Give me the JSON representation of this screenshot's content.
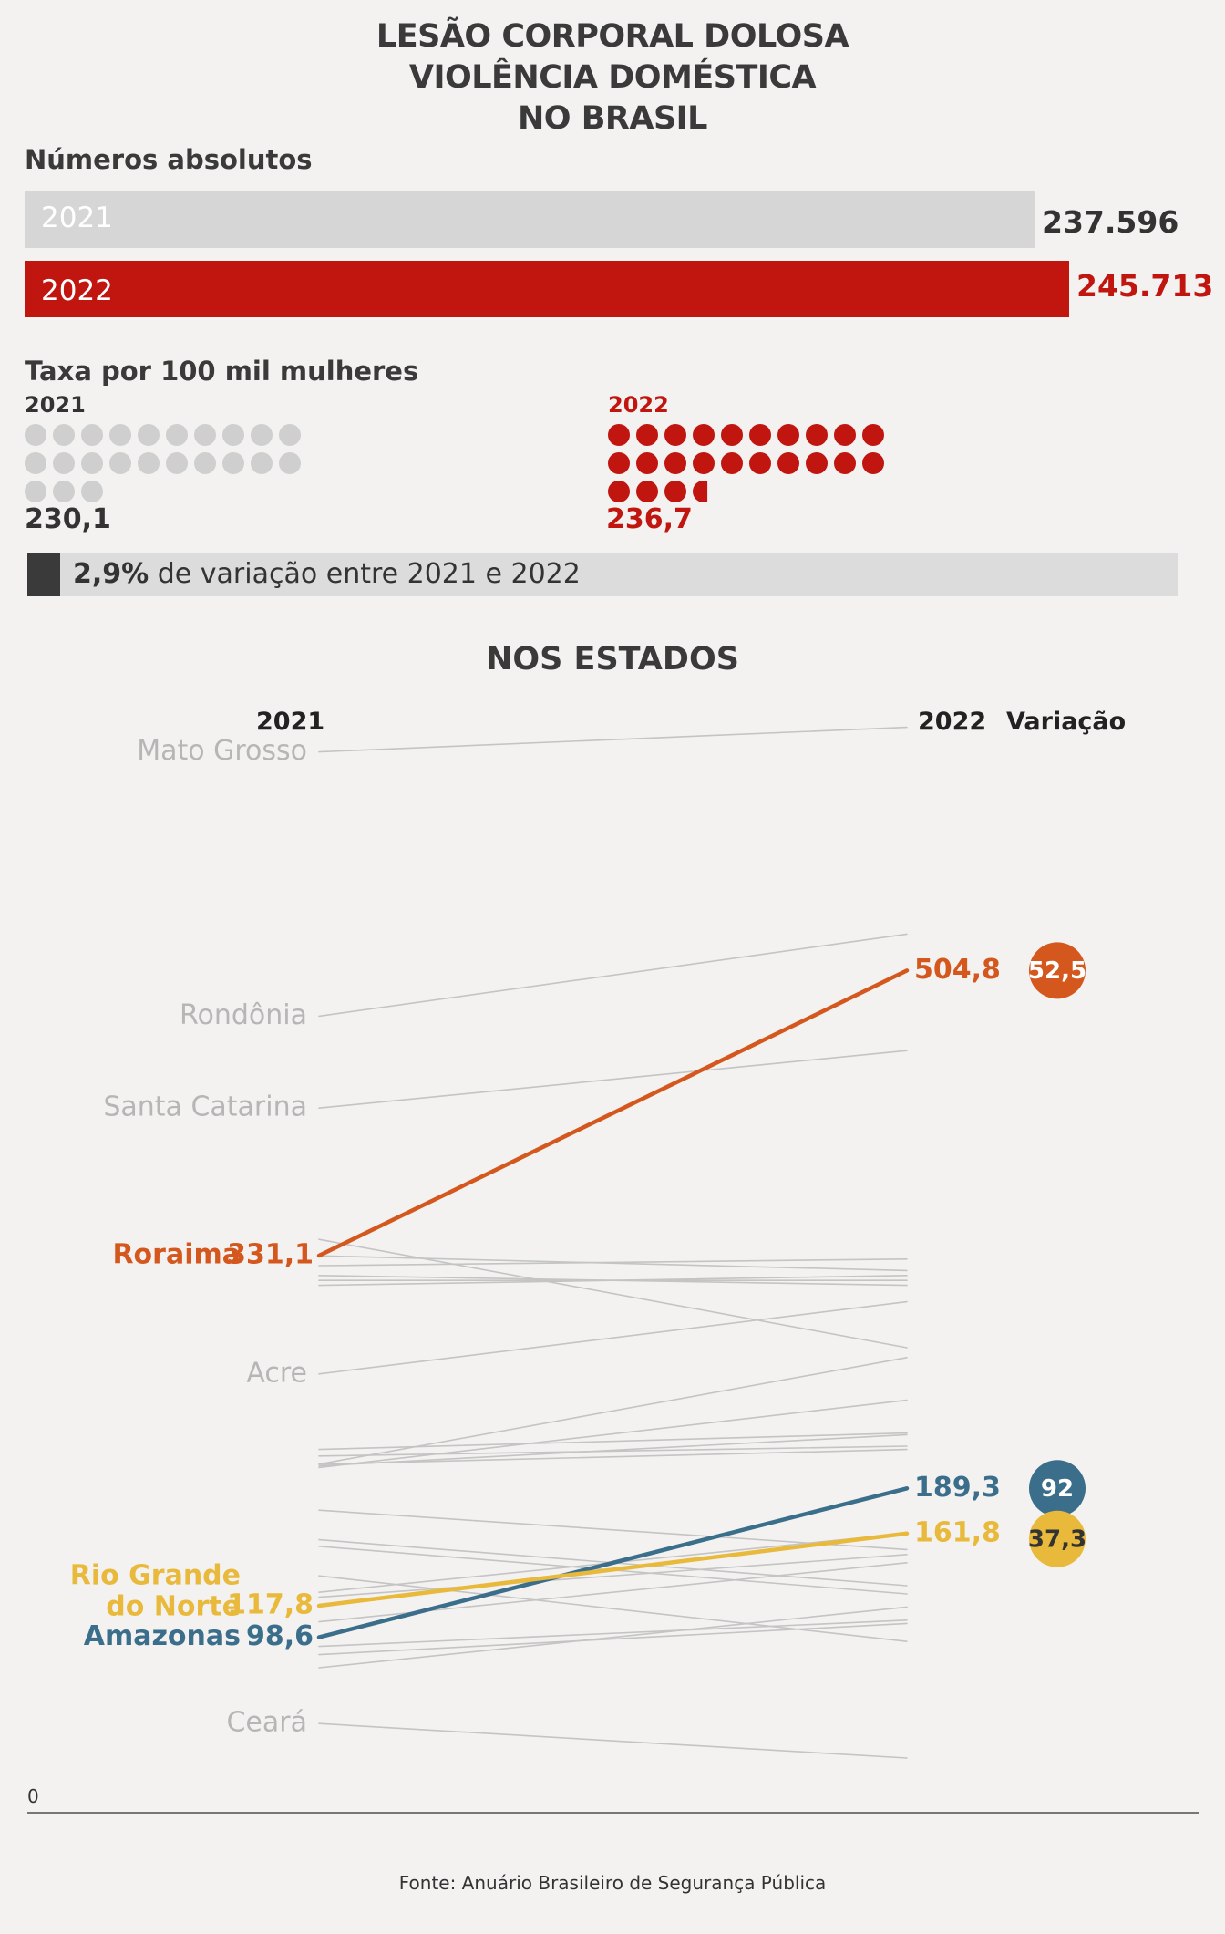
{
  "title": {
    "line1": "LESÃO CORPORAL DOLOSA",
    "line2": "VIOLÊNCIA DOMÉSTICA",
    "line3": "NO BRASIL"
  },
  "absolutes": {
    "heading": "Números absolutos",
    "bars": [
      {
        "year": "2021",
        "value": 237596,
        "label": "237.596",
        "color": "#d6d6d6",
        "text_color": "#ffffff",
        "value_color": "#333333"
      },
      {
        "year": "2022",
        "value": 245713,
        "label": "245.713",
        "color": "#c0160f",
        "text_color": "#ffffff",
        "value_color": "#c0160f"
      }
    ]
  },
  "rate": {
    "heading": "Taxa por 100 mil mulheres",
    "y2021": {
      "year": "2021",
      "value": 230.1,
      "label": "230,1",
      "color": "#cfcfcf",
      "value_color": "#333333",
      "year_color": "#333333"
    },
    "y2022": {
      "year": "2022",
      "value": 236.7,
      "label": "236,7",
      "color": "#c0160f",
      "value_color": "#c0160f",
      "year_color": "#c0160f"
    }
  },
  "variation": {
    "value": "2,9%",
    "text": " de variação entre 2021 e 2022"
  },
  "states": {
    "title": "NOS ESTADOS",
    "head_2021": "2021",
    "head_2022": "2022",
    "head_var": "Variação",
    "zero_label": "0",
    "colors": {
      "orange": "#d4581e",
      "blue": "#3b6e8a",
      "yellow": "#e8b93a",
      "gray": "#c4c4c4"
    }
  },
  "chart_data": {
    "type": "line",
    "title": "NOS ESTADOS",
    "x": [
      "2021",
      "2022"
    ],
    "ylim": [
      0,
      720
    ],
    "highlighted": [
      {
        "name": "Roraima",
        "values": [
          331.1,
          504.8
        ],
        "value_labels": [
          "331,1",
          "504,8"
        ],
        "variation": "52,5",
        "color": "#d4581e"
      },
      {
        "name": "Amazonas",
        "values": [
          98.6,
          189.3
        ],
        "value_labels": [
          "98,6",
          "189,3"
        ],
        "variation": "92",
        "color": "#3b6e8a"
      },
      {
        "name": "Rio Grande do Norte",
        "name_lines": [
          "Rio Grande",
          "do Norte"
        ],
        "values": [
          117.8,
          161.8
        ],
        "value_labels": [
          "117,8",
          "161,8"
        ],
        "variation": "37,3",
        "color": "#e8b93a",
        "variation_text_color": "#333333"
      }
    ],
    "labeled_gray": [
      {
        "name": "Mato Grosso",
        "values": [
          638,
          653
        ]
      },
      {
        "name": "Rondônia",
        "values": [
          477,
          527
        ]
      },
      {
        "name": "Santa Catarina",
        "values": [
          421,
          456
        ]
      },
      {
        "name": "Acre",
        "values": [
          259,
          303
        ]
      },
      {
        "name": "Ceará",
        "values": [
          46,
          25
        ]
      }
    ],
    "other_gray": [
      [
        341,
        275
      ],
      [
        325,
        329
      ],
      [
        319,
        313
      ],
      [
        316,
        316
      ],
      [
        313,
        319
      ],
      [
        331,
        322
      ],
      [
        213,
        223
      ],
      [
        209,
        215
      ],
      [
        204,
        269
      ],
      [
        204,
        213
      ],
      [
        203,
        222
      ],
      [
        202,
        243
      ],
      [
        176,
        152
      ],
      [
        158,
        130
      ],
      [
        154,
        125
      ],
      [
        136,
        96
      ],
      [
        126,
        162
      ],
      [
        123,
        149
      ],
      [
        108,
        144
      ],
      [
        93,
        109
      ],
      [
        88,
        107
      ],
      [
        80,
        117
      ]
    ]
  },
  "footer": "Fonte: Anuário Brasileiro de Segurança Pública"
}
